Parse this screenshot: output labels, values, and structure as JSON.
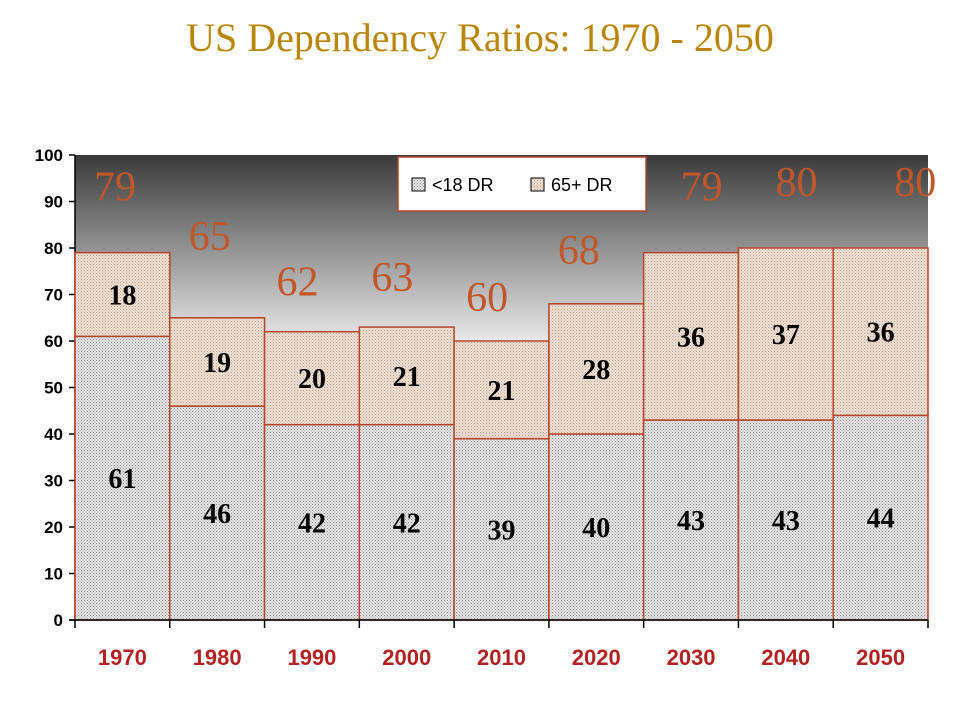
{
  "chart_data": {
    "type": "bar",
    "stacked": true,
    "title": "US Dependency Ratios: 1970 - 2050",
    "xlabel": "",
    "ylabel": "",
    "ylim": [
      0,
      100
    ],
    "yticks": [
      0,
      10,
      20,
      30,
      40,
      50,
      60,
      70,
      80,
      90,
      100
    ],
    "categories": [
      "1970",
      "1980",
      "1990",
      "2000",
      "2010",
      "2020",
      "2030",
      "2040",
      "2050"
    ],
    "series": [
      {
        "name": "<18 DR",
        "values": [
          61,
          46,
          42,
          42,
          39,
          40,
          43,
          43,
          44
        ]
      },
      {
        "name": "65+ DR",
        "values": [
          18,
          19,
          20,
          21,
          21,
          28,
          36,
          37,
          36
        ]
      }
    ],
    "totals": [
      79,
      65,
      62,
      63,
      60,
      68,
      79,
      80,
      80
    ],
    "legend": {
      "placement": "top-center"
    },
    "grid": false,
    "colors": {
      "title": "#b8860b",
      "category_labels": "#b22222",
      "totals": "#c0572b",
      "bar_outline": "#b5452a",
      "series_under18": "#cfcfcf",
      "series_65plus": "#e5d2c2"
    }
  }
}
